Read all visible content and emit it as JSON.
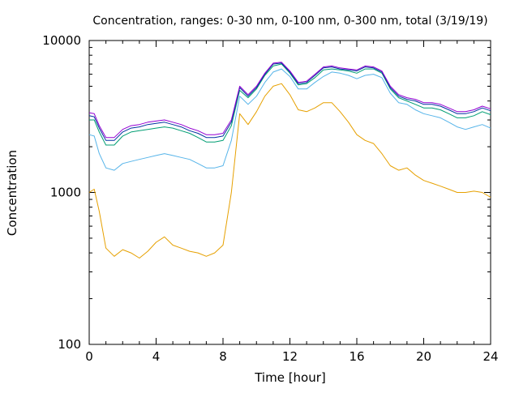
{
  "chart_data": {
    "type": "line",
    "title": "Concentration, ranges: 0-30 nm, 0-100 nm, 0-300 nm, total (3/19/19)",
    "xlabel": "Time [hour]",
    "ylabel": "Concentration",
    "xlim": [
      0,
      24
    ],
    "ylim": [
      100,
      10000
    ],
    "yscale": "log",
    "grid": false,
    "legend": "none",
    "x_ticks": [
      0,
      4,
      8,
      12,
      16,
      20,
      24
    ],
    "x_tick_labels": [
      "0",
      "4",
      "8",
      "12",
      "16",
      "20",
      "24"
    ],
    "y_ticks": [
      100,
      1000,
      10000
    ],
    "y_tick_labels": [
      "100",
      "1000",
      "10000"
    ],
    "x": [
      0,
      0.3,
      0.6,
      1,
      1.5,
      2,
      2.5,
      3,
      3.5,
      4,
      4.5,
      5,
      5.5,
      6,
      6.5,
      7,
      7.5,
      8,
      8.5,
      9,
      9.5,
      10,
      10.5,
      11,
      11.5,
      12,
      12.5,
      13,
      13.5,
      14,
      14.5,
      15,
      15.5,
      16,
      16.5,
      17,
      17.5,
      18,
      18.5,
      19,
      19.5,
      20,
      20.5,
      21,
      21.5,
      22,
      22.5,
      23,
      23.5,
      24
    ],
    "series": [
      {
        "color": "#e6a000",
        "values": [
          1000,
          1050,
          750,
          430,
          380,
          420,
          400,
          370,
          410,
          470,
          510,
          450,
          430,
          410,
          400,
          380,
          400,
          450,
          1000,
          3300,
          2800,
          3400,
          4300,
          5000,
          5200,
          4400,
          3500,
          3400,
          3600,
          3900,
          3900,
          3400,
          2900,
          2400,
          2200,
          2100,
          1800,
          1500,
          1400,
          1450,
          1300,
          1200,
          1150,
          1100,
          1050,
          1000,
          1000,
          1020,
          1000,
          930
        ]
      },
      {
        "color": "#56b4e9",
        "values": [
          2400,
          2350,
          1800,
          1450,
          1400,
          1550,
          1600,
          1650,
          1700,
          1750,
          1800,
          1750,
          1700,
          1650,
          1550,
          1450,
          1450,
          1500,
          2200,
          4300,
          3800,
          4300,
          5300,
          6200,
          6500,
          5800,
          4800,
          4800,
          5300,
          5800,
          6200,
          6100,
          5900,
          5600,
          5900,
          6000,
          5700,
          4500,
          3900,
          3800,
          3500,
          3300,
          3200,
          3100,
          2900,
          2700,
          2600,
          2700,
          2800,
          2650
        ]
      },
      {
        "color": "#009e73",
        "values": [
          3000,
          3000,
          2500,
          2050,
          2050,
          2350,
          2500,
          2550,
          2600,
          2650,
          2700,
          2650,
          2550,
          2450,
          2300,
          2150,
          2150,
          2200,
          2750,
          4700,
          4200,
          4800,
          5900,
          6800,
          7000,
          6100,
          5100,
          5200,
          5700,
          6400,
          6500,
          6400,
          6300,
          6100,
          6500,
          6500,
          6100,
          4800,
          4200,
          4000,
          3800,
          3600,
          3600,
          3500,
          3300,
          3100,
          3100,
          3200,
          3400,
          3250
        ]
      },
      {
        "color": "#0033a0",
        "values": [
          3200,
          3150,
          2650,
          2200,
          2200,
          2500,
          2650,
          2700,
          2800,
          2850,
          2900,
          2800,
          2700,
          2550,
          2450,
          2300,
          2300,
          2350,
          2900,
          4900,
          4300,
          4900,
          6000,
          7000,
          7100,
          6200,
          5200,
          5300,
          5900,
          6600,
          6700,
          6500,
          6400,
          6300,
          6700,
          6600,
          6200,
          4900,
          4300,
          4100,
          4000,
          3800,
          3800,
          3700,
          3500,
          3300,
          3300,
          3400,
          3600,
          3450
        ]
      },
      {
        "color": "#9400d3",
        "values": [
          3350,
          3300,
          2750,
          2300,
          2300,
          2600,
          2750,
          2800,
          2900,
          2950,
          3000,
          2900,
          2800,
          2650,
          2550,
          2400,
          2400,
          2450,
          3000,
          5000,
          4400,
          5000,
          6100,
          7100,
          7200,
          6300,
          5300,
          5400,
          6000,
          6700,
          6800,
          6600,
          6500,
          6400,
          6800,
          6700,
          6300,
          5000,
          4400,
          4200,
          4100,
          3900,
          3900,
          3800,
          3600,
          3400,
          3400,
          3500,
          3700,
          3550
        ]
      }
    ]
  }
}
